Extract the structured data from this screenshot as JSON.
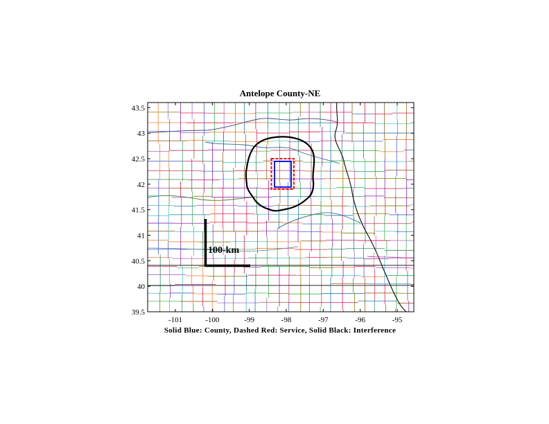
{
  "map": {
    "title": "Antelope County-NE",
    "caption": "Solid Blue: County, Dashed Red: Service, Solid Black: Interference",
    "scale_label": "100-km",
    "lon_range": [
      -101.75,
      -94.55
    ],
    "lat_range": [
      39.5,
      43.6
    ],
    "x_ticks": [
      -101,
      -100,
      -99,
      -98,
      -97,
      -96,
      -95
    ],
    "y_ticks": [
      39.5,
      40,
      40.5,
      41,
      41.5,
      42,
      42.5,
      43,
      43.5
    ],
    "colors": {
      "county": "#0000ff",
      "service": "#ff0000",
      "interference": "#000000",
      "state_border": "#000000"
    }
  }
}
